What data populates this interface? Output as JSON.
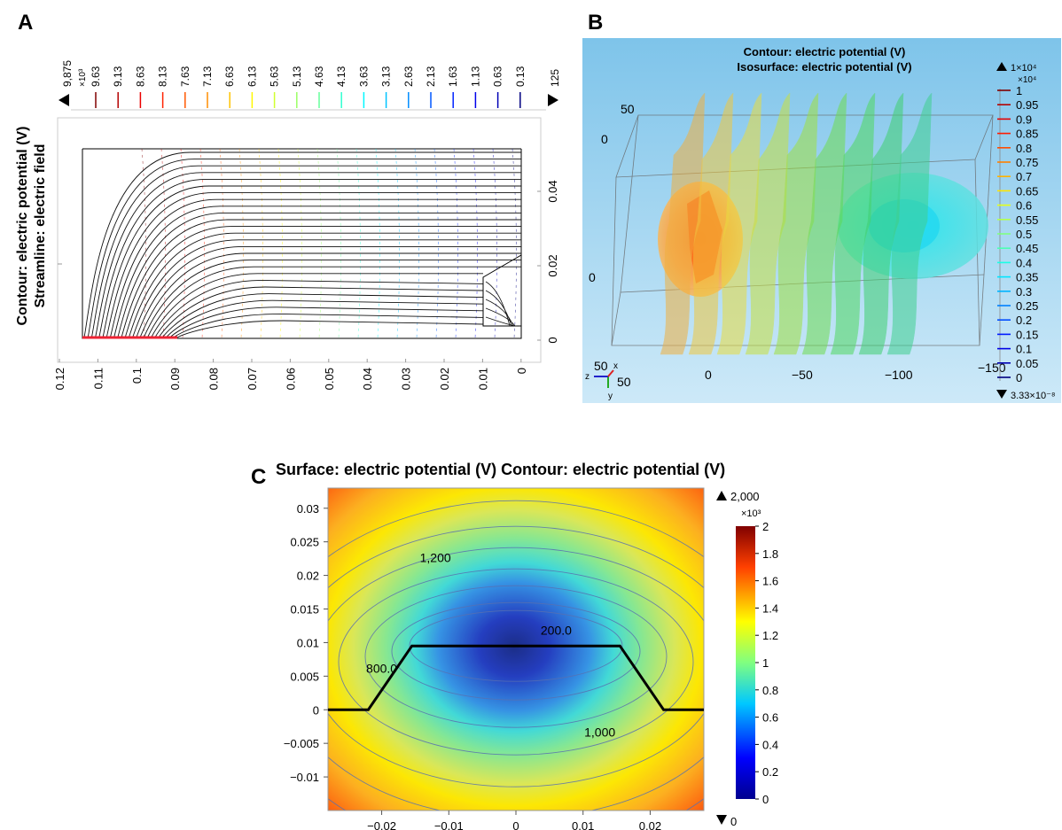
{
  "panels": [
    {
      "letter": "A",
      "title_lines": [
        "Contour: electric potential (V)",
        "Streamline: electric field"
      ],
      "colorbar": {
        "max_label": "9,875",
        "multiplier": "×10³",
        "levels": [
          "9.63",
          "9.13",
          "8.63",
          "8.13",
          "7.63",
          "7.13",
          "6.63",
          "6.13",
          "5.63",
          "5.13",
          "4.63",
          "4.13",
          "3.63",
          "3.13",
          "2.63",
          "2.13",
          "1.63",
          "1.13",
          "0.63",
          "0.13"
        ],
        "min_label": "125"
      },
      "x_ticks": [
        "0.12",
        "0.11",
        "0.1",
        "0.09",
        "0.08",
        "0.07",
        "0.06",
        "0.05",
        "0.04",
        "0.03",
        "0.02",
        "0.01",
        "0"
      ],
      "y_ticks": [
        "0.04",
        "0.02",
        "0"
      ]
    },
    {
      "letter": "B",
      "title_lines": [
        "Contour: electric potential (V)",
        "Isosurface: electric potential (V)"
      ],
      "colorbar": {
        "max_label": "1×10⁴",
        "multiplier": "×10⁴",
        "levels": [
          "1",
          "0.95",
          "0.9",
          "0.85",
          "0.8",
          "0.75",
          "0.7",
          "0.65",
          "0.6",
          "0.55",
          "0.5",
          "0.45",
          "0.4",
          "0.35",
          "0.3",
          "0.25",
          "0.2",
          "0.15",
          "0.1",
          "0.05",
          "0"
        ],
        "min_label": "3.33×10⁻⁸"
      },
      "axis_labels": [
        "50",
        "0",
        "0",
        "50",
        "50",
        "0",
        "−50",
        "−100",
        "−150"
      ],
      "axis_letters": [
        "x",
        "y",
        "z"
      ]
    },
    {
      "letter": "C",
      "title": "Surface: electric potential (V) Contour: electric potential (V)",
      "colorbar": {
        "max_label": "2,000",
        "multiplier": "×10³",
        "ticks": [
          "2",
          "1.8",
          "1.6",
          "1.4",
          "1.2",
          "1",
          "0.8",
          "0.6",
          "0.4",
          "0.2",
          "0"
        ],
        "min_label": "0"
      },
      "contour_labels": [
        "1,200",
        "200.0",
        "800.0",
        "1,000"
      ],
      "x_ticks": [
        "−0.02",
        "−0.01",
        "0",
        "0.01",
        "0.02"
      ],
      "y_ticks": [
        "0.03",
        "0.025",
        "0.02",
        "0.015",
        "0.01",
        "0.005",
        "0",
        "−0.005",
        "−0.01"
      ]
    }
  ],
  "chart_data": [
    {
      "type": "heatmap",
      "title": "Contour: electric potential (V) / Streamline: electric field",
      "x": [
        0.12,
        0.11,
        0.1,
        0.09,
        0.08,
        0.07,
        0.06,
        0.05,
        0.04,
        0.03,
        0.02,
        0.01,
        0
      ],
      "y": [
        0,
        0.02,
        0.04
      ],
      "value_range": [
        125,
        9875
      ],
      "contour_levels": [
        9630,
        9130,
        8630,
        8130,
        7630,
        7130,
        6630,
        6130,
        5630,
        5130,
        4630,
        4130,
        3630,
        3130,
        2630,
        2130,
        1630,
        1130,
        630,
        130
      ]
    },
    {
      "type": "heatmap",
      "title": "Contour: electric potential (V) / Isosurface: electric potential (V)",
      "value_range": [
        3.33e-08,
        10000
      ],
      "colorbar_ticks": [
        1,
        0.95,
        0.9,
        0.85,
        0.8,
        0.75,
        0.7,
        0.65,
        0.6,
        0.55,
        0.5,
        0.45,
        0.4,
        0.35,
        0.3,
        0.25,
        0.2,
        0.15,
        0.1,
        0.05,
        0
      ]
    },
    {
      "type": "heatmap",
      "title": "Surface: electric potential (V) Contour: electric potential (V)",
      "xlim": [
        -0.028,
        0.028
      ],
      "ylim": [
        -0.015,
        0.033
      ],
      "value_range": [
        0,
        2000
      ],
      "contour_annotations": [
        {
          "label": "1,200",
          "x": -0.012,
          "y": 0.022
        },
        {
          "label": "200.0",
          "x": 0.006,
          "y": 0.0112
        },
        {
          "label": "800.0",
          "x": -0.02,
          "y": 0.0055
        },
        {
          "label": "1,000",
          "x": 0.0125,
          "y": -0.004
        }
      ],
      "electrode_path": [
        [
          -0.028,
          0
        ],
        [
          -0.022,
          0
        ],
        [
          -0.0155,
          0.0095
        ],
        [
          -0.0025,
          0.0095
        ],
        [
          0.0025,
          0.0095
        ],
        [
          0.0155,
          0.0095
        ],
        [
          0.022,
          0
        ],
        [
          0.028,
          0
        ]
      ]
    }
  ]
}
